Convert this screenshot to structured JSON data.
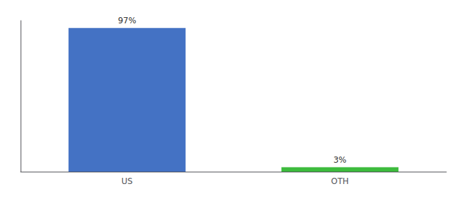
{
  "chart_data": {
    "type": "bar",
    "categories": [
      "US",
      "OTH"
    ],
    "values": [
      97,
      3
    ],
    "value_labels": [
      "97%",
      "3%"
    ],
    "colors": [
      "#4472c4",
      "#3dbb3d"
    ],
    "ylim": [
      0,
      102
    ],
    "yticks": [],
    "grid": false,
    "tick_labels": "x",
    "data_labels": true
  }
}
